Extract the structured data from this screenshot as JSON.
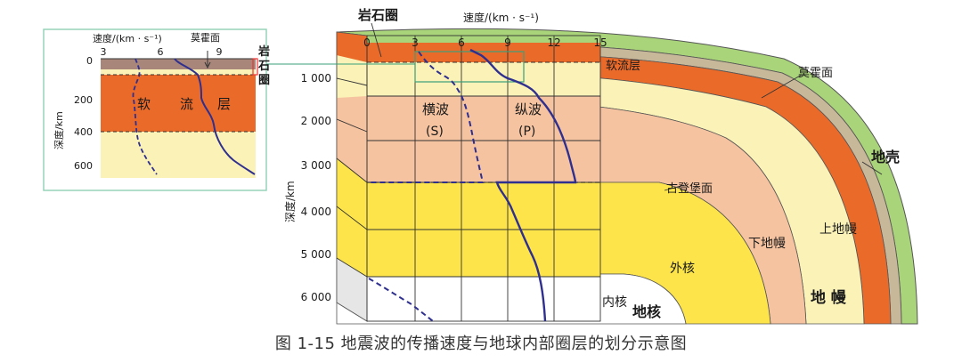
{
  "caption": "图 1-15   地震波的传播速度与地球内部圈层的划分示意图",
  "inset": {
    "axis_title": "速度/(km · s⁻¹)",
    "moho_label": "莫霍面",
    "x_ticks": [
      "3",
      "6",
      "9"
    ],
    "y_title": "深度/km",
    "y_ticks": [
      "0",
      "200",
      "400",
      "600"
    ],
    "asthenosphere_chars": [
      "软",
      "流",
      "层"
    ],
    "lithosphere_chars": [
      "岩",
      "石",
      "圈"
    ]
  },
  "main": {
    "lithosphere_label": "岩石圈",
    "axis_title": "速度/(km · s⁻¹)",
    "x_ticks": [
      "0",
      "3",
      "6",
      "9",
      "12",
      "15"
    ],
    "y_title": "深度/km",
    "y_ticks": [
      "1 000",
      "2 000",
      "3 000",
      "4 000",
      "5 000",
      "6 000"
    ],
    "asthenosphere": "软流层",
    "moho": "莫霍面",
    "crust": "地壳",
    "s_wave": "横波",
    "s_wave_sym": "(S)",
    "p_wave": "纵波",
    "p_wave_sym": "(P)",
    "gutenberg": "古登堡面",
    "lower_mantle": "下地幔",
    "upper_mantle": "上地幔",
    "outer_core": "外核",
    "inner_core": "内核",
    "core": "地核",
    "mantle": "地 幔"
  },
  "colors": {
    "crust_green": "#a9d47a",
    "asthenosphere_orange": "#ea6a2a",
    "upper_mantle_cream": "#fbf2b8",
    "lower_mantle_salmon": "#f6c3a0",
    "outer_core_yellow": "#fce44a",
    "p_wave": "#2f2f8f",
    "inset_border": "#8fd0b4"
  }
}
